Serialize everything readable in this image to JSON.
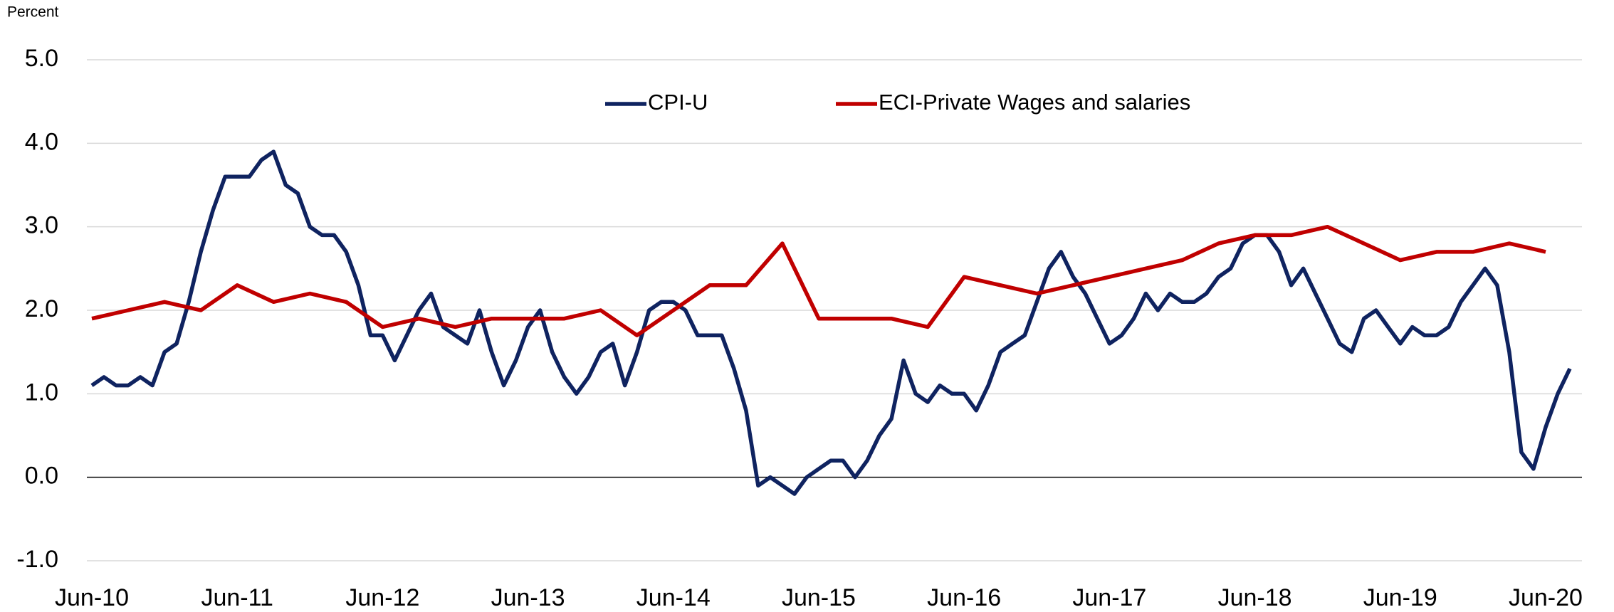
{
  "chart_data": {
    "type": "line",
    "y_label": "Percent",
    "xlim": [
      "Jun-10",
      "Sep-20"
    ],
    "xticks": [
      "Jun-10",
      "Jun-11",
      "Jun-12",
      "Jun-13",
      "Jun-14",
      "Jun-15",
      "Jun-16",
      "Jun-17",
      "Jun-18",
      "Jun-19",
      "Jun-20"
    ],
    "ylim": [
      -1,
      5
    ],
    "yticks": [
      {
        "value": -1,
        "label": "-1.0"
      },
      {
        "value": 0,
        "label": "0.0"
      },
      {
        "value": 1,
        "label": "1.0"
      },
      {
        "value": 2,
        "label": "2.0"
      },
      {
        "value": 3,
        "label": "3.0"
      },
      {
        "value": 4,
        "label": "4.0"
      },
      {
        "value": 5,
        "label": "5.0"
      }
    ],
    "grid": true,
    "legend": "top",
    "series": [
      {
        "name": "CPI-U",
        "color": "#0f2360",
        "x": [
          "Jun-10",
          "Jul-10",
          "Aug-10",
          "Sep-10",
          "Oct-10",
          "Nov-10",
          "Dec-10",
          "Jan-11",
          "Feb-11",
          "Mar-11",
          "Apr-11",
          "May-11",
          "Jun-11",
          "Jul-11",
          "Aug-11",
          "Sep-11",
          "Oct-11",
          "Nov-11",
          "Dec-11",
          "Jan-12",
          "Feb-12",
          "Mar-12",
          "Apr-12",
          "May-12",
          "Jun-12",
          "Jul-12",
          "Aug-12",
          "Sep-12",
          "Oct-12",
          "Nov-12",
          "Dec-12",
          "Jan-13",
          "Feb-13",
          "Mar-13",
          "Apr-13",
          "May-13",
          "Jun-13",
          "Jul-13",
          "Aug-13",
          "Sep-13",
          "Oct-13",
          "Nov-13",
          "Dec-13",
          "Jan-14",
          "Feb-14",
          "Mar-14",
          "Apr-14",
          "May-14",
          "Jun-14",
          "Jul-14",
          "Aug-14",
          "Sep-14",
          "Oct-14",
          "Nov-14",
          "Dec-14",
          "Jan-15",
          "Feb-15",
          "Mar-15",
          "Apr-15",
          "May-15",
          "Jun-15",
          "Jul-15",
          "Aug-15",
          "Sep-15",
          "Oct-15",
          "Nov-15",
          "Dec-15",
          "Jan-16",
          "Feb-16",
          "Mar-16",
          "Apr-16",
          "May-16",
          "Jun-16",
          "Jul-16",
          "Aug-16",
          "Sep-16",
          "Oct-16",
          "Nov-16",
          "Dec-16",
          "Jan-17",
          "Feb-17",
          "Mar-17",
          "Apr-17",
          "May-17",
          "Jun-17",
          "Jul-17",
          "Aug-17",
          "Sep-17",
          "Oct-17",
          "Nov-17",
          "Dec-17",
          "Jan-18",
          "Feb-18",
          "Mar-18",
          "Apr-18",
          "May-18",
          "Jun-18",
          "Jul-18",
          "Aug-18",
          "Sep-18",
          "Oct-18",
          "Nov-18",
          "Dec-18",
          "Jan-19",
          "Feb-19",
          "Mar-19",
          "Apr-19",
          "May-19",
          "Jun-19",
          "Jul-19",
          "Aug-19",
          "Sep-19",
          "Oct-19",
          "Nov-19",
          "Dec-19",
          "Jan-20",
          "Feb-20",
          "Mar-20",
          "Apr-20",
          "May-20",
          "Jun-20",
          "Jul-20",
          "Aug-20"
        ],
        "values": [
          1.1,
          1.2,
          1.1,
          1.1,
          1.2,
          1.1,
          1.5,
          1.6,
          2.1,
          2.7,
          3.2,
          3.6,
          3.6,
          3.6,
          3.8,
          3.9,
          3.5,
          3.4,
          3.0,
          2.9,
          2.9,
          2.7,
          2.3,
          1.7,
          1.7,
          1.4,
          1.7,
          2.0,
          2.2,
          1.8,
          1.7,
          1.6,
          2.0,
          1.5,
          1.1,
          1.4,
          1.8,
          2.0,
          1.5,
          1.2,
          1.0,
          1.2,
          1.5,
          1.6,
          1.1,
          1.5,
          2.0,
          2.1,
          2.1,
          2.0,
          1.7,
          1.7,
          1.7,
          1.3,
          0.8,
          -0.1,
          0.0,
          -0.1,
          -0.2,
          0.0,
          0.1,
          0.2,
          0.2,
          0.0,
          0.2,
          0.5,
          0.7,
          1.4,
          1.0,
          0.9,
          1.1,
          1.0,
          1.0,
          0.8,
          1.1,
          1.5,
          1.6,
          1.7,
          2.1,
          2.5,
          2.7,
          2.4,
          2.2,
          1.9,
          1.6,
          1.7,
          1.9,
          2.2,
          2.0,
          2.2,
          2.1,
          2.1,
          2.2,
          2.4,
          2.5,
          2.8,
          2.9,
          2.9,
          2.7,
          2.3,
          2.5,
          2.2,
          1.9,
          1.6,
          1.5,
          1.9,
          2.0,
          1.8,
          1.6,
          1.8,
          1.7,
          1.7,
          1.8,
          2.1,
          2.3,
          2.5,
          2.3,
          1.5,
          0.3,
          0.1,
          0.6,
          1.0,
          1.3
        ]
      },
      {
        "name": "ECI-Private Wages and salaries",
        "color": "#c00000",
        "x": [
          "Jun-10",
          "Sep-10",
          "Dec-10",
          "Mar-11",
          "Jun-11",
          "Sep-11",
          "Dec-11",
          "Mar-12",
          "Jun-12",
          "Sep-12",
          "Dec-12",
          "Mar-13",
          "Jun-13",
          "Sep-13",
          "Dec-13",
          "Mar-14",
          "Jun-14",
          "Sep-14",
          "Dec-14",
          "Mar-15",
          "Jun-15",
          "Sep-15",
          "Dec-15",
          "Mar-16",
          "Jun-16",
          "Sep-16",
          "Dec-16",
          "Mar-17",
          "Jun-17",
          "Sep-17",
          "Dec-17",
          "Mar-18",
          "Jun-18",
          "Sep-18",
          "Dec-18",
          "Mar-19",
          "Jun-19",
          "Sep-19",
          "Dec-19",
          "Mar-20",
          "Jun-20"
        ],
        "values": [
          1.9,
          2.0,
          2.1,
          2.0,
          2.3,
          2.1,
          2.2,
          2.1,
          1.8,
          1.9,
          1.8,
          1.9,
          1.9,
          1.9,
          2.0,
          1.7,
          2.0,
          2.3,
          2.3,
          2.8,
          1.9,
          1.9,
          1.9,
          1.8,
          2.4,
          2.3,
          2.2,
          2.3,
          2.4,
          2.5,
          2.6,
          2.8,
          2.9,
          2.9,
          3.0,
          2.8,
          2.6,
          2.7,
          2.7,
          2.8,
          2.7
        ]
      }
    ]
  }
}
